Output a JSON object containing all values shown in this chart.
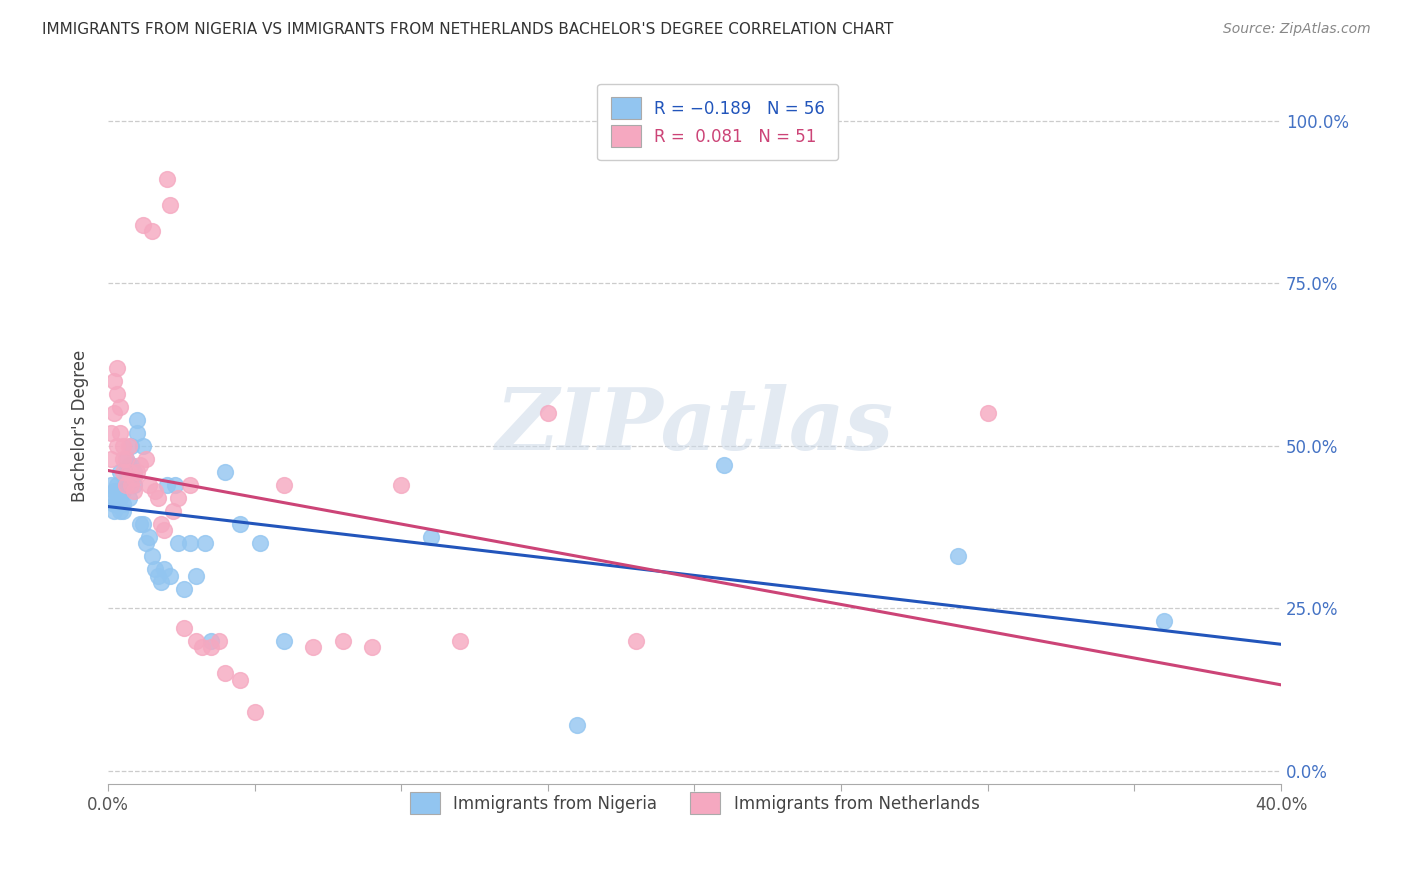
{
  "title": "IMMIGRANTS FROM NIGERIA VS IMMIGRANTS FROM NETHERLANDS BACHELOR'S DEGREE CORRELATION CHART",
  "source": "Source: ZipAtlas.com",
  "ylabel": "Bachelor's Degree",
  "yticks_labels": [
    "0.0%",
    "25.0%",
    "50.0%",
    "75.0%",
    "100.0%"
  ],
  "ytick_vals": [
    0.0,
    0.25,
    0.5,
    0.75,
    1.0
  ],
  "xlim": [
    0.0,
    0.4
  ],
  "ylim": [
    -0.02,
    1.08
  ],
  "r_nigeria": -0.189,
  "n_nigeria": 56,
  "r_netherlands": 0.081,
  "n_netherlands": 51,
  "color_nigeria": "#92C5F0",
  "color_netherlands": "#F5A8C0",
  "line_color_nigeria": "#2255BB",
  "line_color_netherlands": "#CC4477",
  "watermark": "ZIPatlas",
  "nigeria_x": [
    0.001,
    0.001,
    0.002,
    0.002,
    0.002,
    0.003,
    0.003,
    0.003,
    0.003,
    0.004,
    0.004,
    0.004,
    0.004,
    0.005,
    0.005,
    0.005,
    0.006,
    0.006,
    0.006,
    0.007,
    0.007,
    0.007,
    0.008,
    0.008,
    0.009,
    0.009,
    0.01,
    0.01,
    0.011,
    0.012,
    0.012,
    0.013,
    0.014,
    0.015,
    0.016,
    0.017,
    0.018,
    0.019,
    0.02,
    0.021,
    0.023,
    0.024,
    0.026,
    0.028,
    0.03,
    0.033,
    0.035,
    0.04,
    0.045,
    0.052,
    0.06,
    0.11,
    0.16,
    0.21,
    0.29,
    0.36
  ],
  "nigeria_y": [
    0.44,
    0.42,
    0.43,
    0.41,
    0.4,
    0.43,
    0.42,
    0.41,
    0.44,
    0.42,
    0.4,
    0.43,
    0.46,
    0.41,
    0.43,
    0.4,
    0.44,
    0.46,
    0.48,
    0.42,
    0.45,
    0.47,
    0.5,
    0.47,
    0.46,
    0.44,
    0.52,
    0.54,
    0.38,
    0.5,
    0.38,
    0.35,
    0.36,
    0.33,
    0.31,
    0.3,
    0.29,
    0.31,
    0.44,
    0.3,
    0.44,
    0.35,
    0.28,
    0.35,
    0.3,
    0.35,
    0.2,
    0.46,
    0.38,
    0.35,
    0.2,
    0.36,
    0.07,
    0.47,
    0.33,
    0.23
  ],
  "netherlands_x": [
    0.001,
    0.001,
    0.002,
    0.002,
    0.003,
    0.003,
    0.003,
    0.004,
    0.004,
    0.005,
    0.005,
    0.005,
    0.006,
    0.006,
    0.007,
    0.007,
    0.008,
    0.009,
    0.009,
    0.01,
    0.011,
    0.012,
    0.013,
    0.014,
    0.015,
    0.016,
    0.017,
    0.018,
    0.019,
    0.02,
    0.021,
    0.022,
    0.024,
    0.026,
    0.028,
    0.03,
    0.032,
    0.035,
    0.038,
    0.04,
    0.045,
    0.05,
    0.06,
    0.07,
    0.08,
    0.09,
    0.1,
    0.12,
    0.15,
    0.18,
    0.3
  ],
  "netherlands_y": [
    0.52,
    0.48,
    0.6,
    0.55,
    0.62,
    0.58,
    0.5,
    0.56,
    0.52,
    0.48,
    0.5,
    0.46,
    0.48,
    0.44,
    0.5,
    0.46,
    0.44,
    0.43,
    0.45,
    0.46,
    0.47,
    0.84,
    0.48,
    0.44,
    0.83,
    0.43,
    0.42,
    0.38,
    0.37,
    0.91,
    0.87,
    0.4,
    0.42,
    0.22,
    0.44,
    0.2,
    0.19,
    0.19,
    0.2,
    0.15,
    0.14,
    0.09,
    0.44,
    0.19,
    0.2,
    0.19,
    0.44,
    0.2,
    0.55,
    0.2,
    0.55
  ]
}
